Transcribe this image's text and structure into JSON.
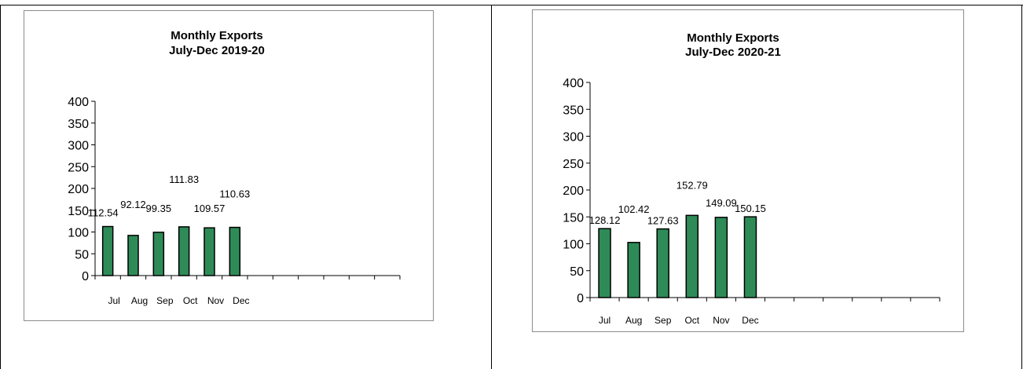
{
  "colors": {
    "bar_fill": "#2e8b57",
    "bar_stroke": "#000000",
    "axis": "#000000",
    "chart_border": "#8c8c8c"
  },
  "chart_data": [
    {
      "type": "bar",
      "title": "Monthly Exports",
      "subtitle": "July-Dec 2019-20",
      "categories": [
        "Jul",
        "Aug",
        "Sep",
        "Oct",
        "Nov",
        "Dec"
      ],
      "category_slots": 12,
      "values": [
        112.54,
        92.12,
        99.35,
        111.83,
        109.57,
        110.63
      ],
      "value_labels": [
        "112.54",
        "92.12",
        "99.35",
        "111.83",
        "109.57",
        "110.63"
      ],
      "yticks": [
        "0",
        "50",
        "100",
        "150",
        "200",
        "250",
        "300",
        "350",
        "400"
      ],
      "ylim": [
        0,
        400
      ],
      "grid": false,
      "legend": "none"
    },
    {
      "type": "bar",
      "title": "Monthly Exports",
      "subtitle": "July-Dec 2020-21",
      "categories": [
        "Jul",
        "Aug",
        "Sep",
        "Oct",
        "Nov",
        "Dec"
      ],
      "category_slots": 12,
      "values": [
        128.12,
        102.42,
        127.63,
        152.79,
        149.09,
        150.15
      ],
      "value_labels": [
        "128.12",
        "102.42",
        "127.63",
        "152.79",
        "149.09",
        "150.15"
      ],
      "yticks": [
        "0",
        "50",
        "100",
        "150",
        "200",
        "250",
        "300",
        "350",
        "400"
      ],
      "ylim": [
        0,
        400
      ],
      "grid": false,
      "legend": "none"
    }
  ]
}
